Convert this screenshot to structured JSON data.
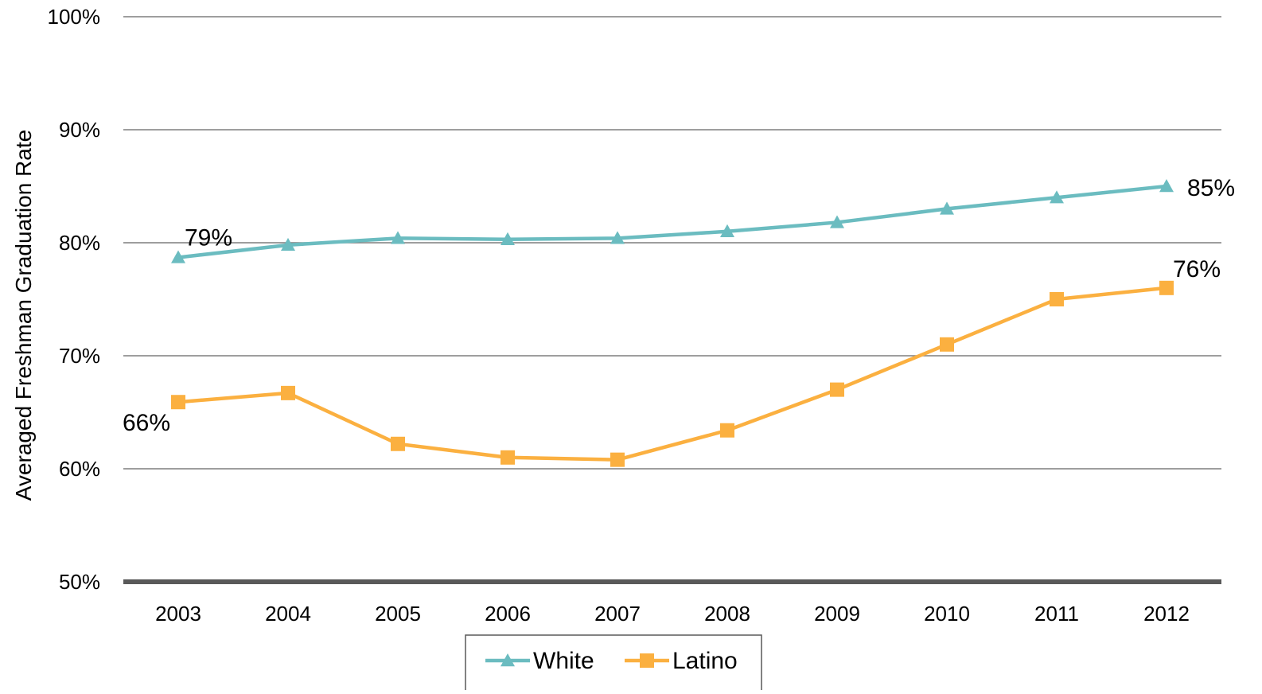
{
  "chart_data": {
    "type": "line",
    "title": "",
    "xlabel": "",
    "ylabel": "Averaged Freshman Graduation Rate",
    "categories": [
      "2003",
      "2004",
      "2005",
      "2006",
      "2007",
      "2008",
      "2009",
      "2010",
      "2011",
      "2012"
    ],
    "ylim": [
      50,
      100
    ],
    "yticks": [
      50,
      60,
      70,
      80,
      90,
      100
    ],
    "ytick_labels": [
      "50%",
      "60%",
      "70%",
      "80%",
      "90%",
      "100%"
    ],
    "grid": true,
    "legend_position": "bottom",
    "series": [
      {
        "name": "White",
        "color": "#6bbcc0",
        "marker": "triangle",
        "values": [
          78.7,
          79.8,
          80.4,
          80.3,
          80.4,
          81.0,
          81.8,
          83.0,
          84.0,
          85.0
        ]
      },
      {
        "name": "Latino",
        "color": "#fbb040",
        "marker": "square",
        "values": [
          65.9,
          66.7,
          62.2,
          61.0,
          60.8,
          63.4,
          67.0,
          71.0,
          75.0,
          76.0
        ]
      }
    ],
    "annotations": [
      {
        "series": 0,
        "index": 0,
        "text": "79%"
      },
      {
        "series": 0,
        "index": 9,
        "text": "85%"
      },
      {
        "series": 1,
        "index": 0,
        "text": "66%"
      },
      {
        "series": 1,
        "index": 9,
        "text": "76%"
      }
    ]
  }
}
